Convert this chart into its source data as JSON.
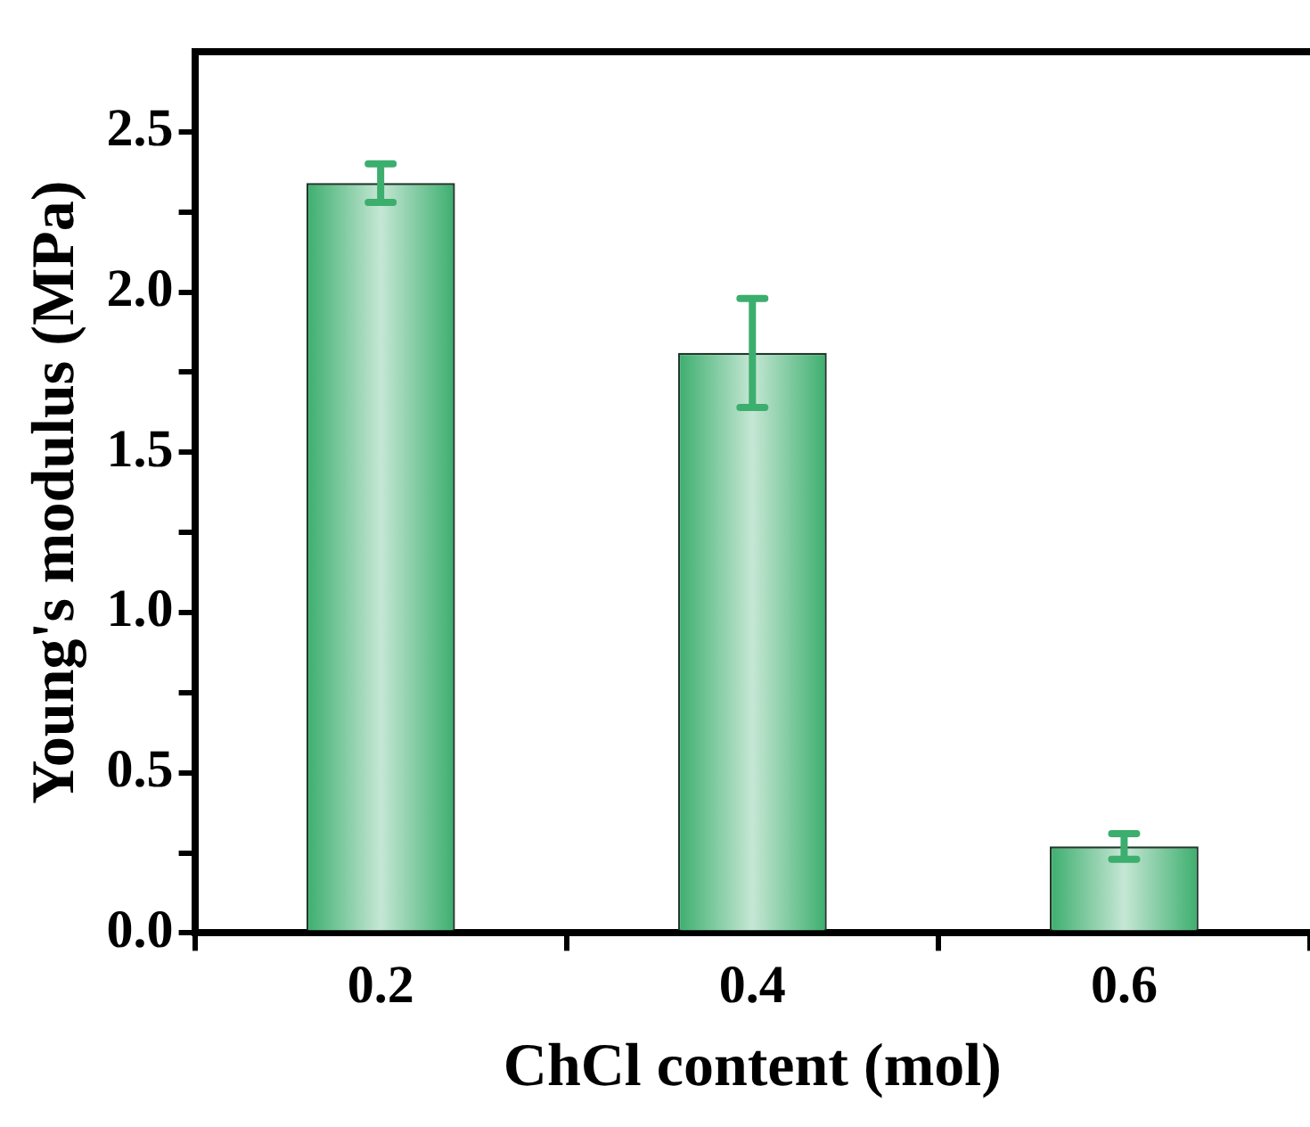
{
  "chart_data": {
    "type": "bar",
    "xlabel": "ChCl content (mol)",
    "ylabel": "Young's modulus (MPa)",
    "categories": [
      "0.2",
      "0.4",
      "0.6"
    ],
    "values": [
      2.34,
      1.81,
      0.27
    ],
    "errors": [
      0.06,
      0.17,
      0.04
    ],
    "color": "#3cae6e",
    "ylim": [
      0,
      2.75
    ],
    "yticks": [
      {
        "value": 0,
        "label": "0.0"
      },
      {
        "value": 0.25,
        "label": null
      },
      0.5,
      {
        "value": 0.75,
        "label": null
      },
      {
        "value": 1,
        "label": "1.0"
      },
      {
        "value": 1.25,
        "label": null
      },
      1.5,
      {
        "value": 1.75,
        "label": null
      },
      {
        "value": 2,
        "label": "2.0"
      },
      {
        "value": 2.25,
        "label": null
      },
      2.5
    ],
    "grid": false,
    "legend": false
  }
}
